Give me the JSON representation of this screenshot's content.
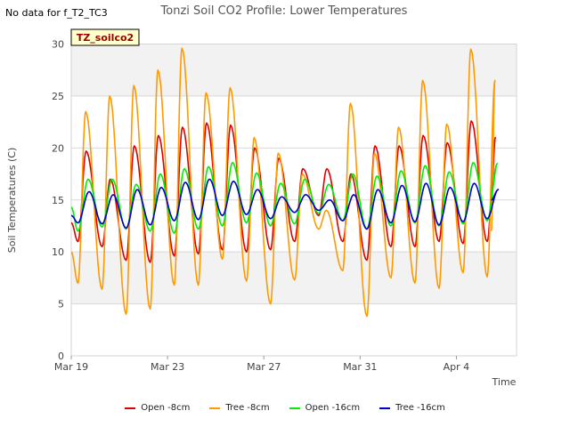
{
  "header": {
    "no_data_note": "No data for f_T2_TC3"
  },
  "chart_data": {
    "type": "line",
    "title": "Tonzi Soil CO2 Profile: Lower Temperatures",
    "xlabel": "Time",
    "ylabel": "Soil Temperatures (C)",
    "badge": "TZ_soilco2",
    "xlim": [
      0,
      18.5
    ],
    "ylim": [
      0,
      30
    ],
    "yticks": [
      0,
      5,
      10,
      15,
      20,
      25,
      30
    ],
    "xticks": [
      {
        "day": 0,
        "label": "Mar 19"
      },
      {
        "day": 4,
        "label": "Mar 23"
      },
      {
        "day": 8,
        "label": "Mar 27"
      },
      {
        "day": 12,
        "label": "Mar 31"
      },
      {
        "day": 16,
        "label": "Apr 4"
      }
    ],
    "grid": true,
    "legend_position": "bottom",
    "series": [
      {
        "name": "Open -8cm",
        "color": "#dd0000",
        "phase": 0.62,
        "start": 12.8,
        "days": [
          [
            0,
            11.0,
            19.7
          ],
          [
            1,
            10.5,
            17.0
          ],
          [
            2,
            9.2,
            20.2
          ],
          [
            3,
            9.0,
            21.2
          ],
          [
            4,
            9.6,
            22.0
          ],
          [
            5,
            9.8,
            22.4
          ],
          [
            6,
            10.2,
            22.2
          ],
          [
            7,
            10.0,
            20.0
          ],
          [
            8,
            10.2,
            19.0
          ],
          [
            9,
            11.0,
            18.0
          ],
          [
            10,
            13.5,
            18.0
          ],
          [
            11,
            11.0,
            17.5
          ],
          [
            12,
            9.2,
            20.2
          ],
          [
            13,
            10.5,
            20.2
          ],
          [
            14,
            10.5,
            21.2
          ],
          [
            15,
            11.0,
            20.5
          ],
          [
            16,
            10.8,
            22.6
          ],
          [
            17,
            11.0,
            21.0
          ],
          [
            17.45,
            12.8,
            15.0
          ]
        ]
      },
      {
        "name": "Tree -8cm",
        "color": "#ff9900",
        "phase": 0.6,
        "start": 10.0,
        "days": [
          [
            0,
            7.0,
            23.5
          ],
          [
            1,
            6.4,
            25.0
          ],
          [
            2,
            4.0,
            26.0
          ],
          [
            3,
            4.5,
            27.5
          ],
          [
            4,
            6.8,
            29.6
          ],
          [
            5,
            6.8,
            25.3
          ],
          [
            6,
            9.3,
            25.8
          ],
          [
            7,
            7.2,
            21.0
          ],
          [
            8,
            5.0,
            19.5
          ],
          [
            9,
            7.3,
            17.5
          ],
          [
            10,
            12.2,
            14.0
          ],
          [
            11,
            8.2,
            24.3
          ],
          [
            12,
            3.8,
            19.5
          ],
          [
            13,
            7.5,
            22.0
          ],
          [
            14,
            7.0,
            26.5
          ],
          [
            15,
            6.5,
            22.3
          ],
          [
            16,
            8.0,
            29.5
          ],
          [
            17,
            7.6,
            26.5
          ],
          [
            17.45,
            7.4,
            12.0
          ]
        ]
      },
      {
        "name": "Open -16cm",
        "color": "#00ee00",
        "phase": 0.7,
        "start": 14.3,
        "days": [
          [
            0,
            12.0,
            17.0
          ],
          [
            1,
            12.4,
            17.0
          ],
          [
            2,
            12.2,
            16.5
          ],
          [
            3,
            12.0,
            17.5
          ],
          [
            4,
            11.8,
            18.0
          ],
          [
            5,
            12.2,
            18.2
          ],
          [
            6,
            12.5,
            18.6
          ],
          [
            7,
            12.8,
            17.6
          ],
          [
            8,
            12.5,
            16.6
          ],
          [
            9,
            12.7,
            17.0
          ],
          [
            10,
            13.7,
            16.5
          ],
          [
            11,
            13.0,
            17.5
          ],
          [
            12,
            12.2,
            17.3
          ],
          [
            13,
            12.5,
            17.8
          ],
          [
            14,
            12.8,
            18.3
          ],
          [
            15,
            12.5,
            17.7
          ],
          [
            16,
            12.7,
            18.6
          ],
          [
            17,
            13.0,
            18.5
          ],
          [
            17.45,
            15.0,
            15.6
          ]
        ]
      },
      {
        "name": "Tree -16cm",
        "color": "#0000cc",
        "phase": 0.74,
        "start": 13.5,
        "days": [
          [
            0,
            12.8,
            15.8
          ],
          [
            1,
            12.7,
            15.5
          ],
          [
            2,
            12.3,
            16.0
          ],
          [
            3,
            12.6,
            16.2
          ],
          [
            4,
            13.0,
            16.7
          ],
          [
            5,
            13.1,
            17.0
          ],
          [
            6,
            13.5,
            16.8
          ],
          [
            7,
            13.6,
            16.0
          ],
          [
            8,
            13.2,
            15.3
          ],
          [
            9,
            13.8,
            15.5
          ],
          [
            10,
            14.0,
            15.0
          ],
          [
            11,
            13.0,
            15.5
          ],
          [
            12,
            12.2,
            16.0
          ],
          [
            13,
            12.8,
            16.4
          ],
          [
            14,
            12.9,
            16.6
          ],
          [
            15,
            12.6,
            16.2
          ],
          [
            16,
            12.9,
            16.6
          ],
          [
            17,
            13.2,
            16.0
          ],
          [
            17.45,
            14.2,
            15.0
          ]
        ]
      }
    ]
  }
}
